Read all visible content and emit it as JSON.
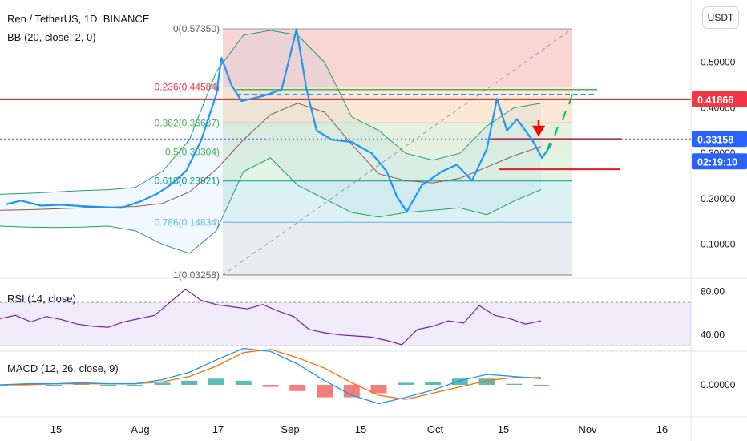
{
  "header": {
    "symbol_title": "Ren / TetherUS, 1D, BINANCE",
    "indicator_bb": "BB (20, close, 2, 0)",
    "currency": "USDT"
  },
  "chart_data": [
    {
      "type": "line",
      "panel": "price",
      "title": "Ren / TetherUS, 1D, BINANCE",
      "y_axis_labels": [
        "0.50000",
        "0.40000",
        "0.30000",
        "0.20000",
        "0.10000"
      ],
      "ylim": [
        0.03,
        0.58
      ],
      "price_series": [
        {
          "date": "2020-07-05",
          "close": 0.188
        },
        {
          "date": "2020-07-08",
          "close": 0.196
        },
        {
          "date": "2020-07-12",
          "close": 0.185
        },
        {
          "date": "2020-07-16",
          "close": 0.187
        },
        {
          "date": "2020-07-20",
          "close": 0.184
        },
        {
          "date": "2020-07-24",
          "close": 0.182
        },
        {
          "date": "2020-07-28",
          "close": 0.18
        },
        {
          "date": "2020-08-01",
          "close": 0.195
        },
        {
          "date": "2020-08-04",
          "close": 0.21
        },
        {
          "date": "2020-08-07",
          "close": 0.232
        },
        {
          "date": "2020-08-10",
          "close": 0.262
        },
        {
          "date": "2020-08-13",
          "close": 0.33
        },
        {
          "date": "2020-08-16",
          "close": 0.43
        },
        {
          "date": "2020-08-17",
          "close": 0.51
        },
        {
          "date": "2020-08-19",
          "close": 0.45
        },
        {
          "date": "2020-08-21",
          "close": 0.415
        },
        {
          "date": "2020-08-25",
          "close": 0.425
        },
        {
          "date": "2020-08-29",
          "close": 0.44
        },
        {
          "date": "2020-09-01",
          "close": 0.573
        },
        {
          "date": "2020-09-03",
          "close": 0.44
        },
        {
          "date": "2020-09-05",
          "close": 0.35
        },
        {
          "date": "2020-09-08",
          "close": 0.33
        },
        {
          "date": "2020-09-12",
          "close": 0.325
        },
        {
          "date": "2020-09-16",
          "close": 0.3
        },
        {
          "date": "2020-09-19",
          "close": 0.26
        },
        {
          "date": "2020-09-21",
          "close": 0.205
        },
        {
          "date": "2020-09-23",
          "close": 0.172
        },
        {
          "date": "2020-09-26",
          "close": 0.23
        },
        {
          "date": "2020-09-30",
          "close": 0.26
        },
        {
          "date": "2020-10-03",
          "close": 0.275
        },
        {
          "date": "2020-10-06",
          "close": 0.24
        },
        {
          "date": "2020-10-09",
          "close": 0.31
        },
        {
          "date": "2020-10-11",
          "close": 0.42
        },
        {
          "date": "2020-10-13",
          "close": 0.35
        },
        {
          "date": "2020-10-15",
          "close": 0.375
        },
        {
          "date": "2020-10-18",
          "close": 0.33
        },
        {
          "date": "2020-10-20",
          "close": 0.29
        },
        {
          "date": "2020-10-22",
          "close": 0.322
        }
      ],
      "bollinger": {
        "basis": [
          0.175,
          0.176,
          0.178,
          0.18,
          0.182,
          0.183,
          0.19,
          0.215,
          0.265,
          0.33,
          0.385,
          0.41,
          0.39,
          0.32,
          0.255,
          0.24,
          0.235,
          0.245,
          0.27,
          0.295,
          0.315
        ],
        "upper": [
          0.21,
          0.212,
          0.215,
          0.218,
          0.22,
          0.225,
          0.26,
          0.33,
          0.48,
          0.56,
          0.57,
          0.56,
          0.5,
          0.38,
          0.35,
          0.3,
          0.285,
          0.3,
          0.36,
          0.4,
          0.41
        ],
        "lower": [
          0.14,
          0.138,
          0.137,
          0.138,
          0.14,
          0.13,
          0.1,
          0.08,
          0.13,
          0.26,
          0.29,
          0.23,
          0.2,
          0.17,
          0.16,
          0.17,
          0.175,
          0.18,
          0.165,
          0.195,
          0.22
        ]
      },
      "fibonacci": [
        {
          "label": "0(0.57350)",
          "level": 0.5735,
          "fill": "#f8cfcb"
        },
        {
          "label": "0.236(0.44584)",
          "level": 0.44584,
          "fill": "#fbe4cc"
        },
        {
          "label": "0.382(0.36687)",
          "level": 0.36687,
          "fill": "#e0efd8"
        },
        {
          "label": "0.5(0.30304)",
          "level": 0.30304,
          "fill": "#dff2df"
        },
        {
          "label": "0.618(0.23921)",
          "level": 0.23921,
          "fill": "#d6eef0"
        },
        {
          "label": "0.786(0.14834)",
          "level": 0.14834,
          "fill": "#e7e9ec"
        },
        {
          "label": "1(0.03258)",
          "level": 0.03258,
          "fill": "#ffffff"
        }
      ],
      "horizontal_lines": [
        {
          "price": 0.41866,
          "color": "#e21b1b"
        },
        {
          "price": 0.3315,
          "color": "#e21b1b"
        },
        {
          "price": 0.265,
          "color": "#e21b1b"
        },
        {
          "price": 0.44,
          "color": "#4caf50"
        }
      ],
      "price_labels": [
        {
          "text": "0.41866",
          "value": 0.41866,
          "color": "#f23645"
        },
        {
          "text": "0.33158",
          "value": 0.33158,
          "color": "#2962ff"
        },
        {
          "text": "02:19:10",
          "value": 0.29,
          "color": "#2962ff"
        }
      ]
    },
    {
      "type": "line",
      "panel": "rsi",
      "title": "RSI (14, close)",
      "y_axis_labels": [
        "80.00",
        "40.00"
      ],
      "ylim": [
        25,
        90
      ],
      "band": [
        30,
        70
      ],
      "values": [
        55,
        58,
        52,
        57,
        54,
        50,
        48,
        47,
        52,
        55,
        58,
        70,
        82,
        72,
        68,
        66,
        64,
        68,
        62,
        57,
        45,
        42,
        40,
        39,
        38,
        35,
        31,
        45,
        48,
        53,
        51,
        67,
        58,
        55,
        50,
        53
      ]
    },
    {
      "type": "bar",
      "panel": "macd",
      "title": "MACD (12, 26, close, 9)",
      "y_axis_labels": [
        "0.00000"
      ],
      "ylim": [
        -0.035,
        0.045
      ],
      "macd": [
        0.0,
        0.001,
        0.001,
        0.002,
        0.001,
        0.001,
        0.005,
        0.012,
        0.024,
        0.035,
        0.032,
        0.02,
        0.004,
        -0.01,
        -0.018,
        -0.012,
        -0.005,
        0.004,
        0.01,
        0.008,
        0.006
      ],
      "signal": [
        0.0,
        0.0,
        0.001,
        0.001,
        0.001,
        0.001,
        0.003,
        0.008,
        0.018,
        0.031,
        0.034,
        0.026,
        0.016,
        0.002,
        -0.01,
        -0.014,
        -0.008,
        -0.002,
        0.004,
        0.007,
        0.007
      ],
      "histogram": [
        0.0,
        0.001,
        0.0,
        0.001,
        0.0,
        0.0,
        0.002,
        0.004,
        0.006,
        0.004,
        -0.002,
        -0.006,
        -0.012,
        -0.012,
        -0.008,
        0.002,
        0.003,
        0.006,
        0.006,
        0.001,
        -0.001
      ]
    }
  ],
  "x_axis": {
    "tick_labels": [
      "15",
      "Aug",
      "17",
      "Sep",
      "15",
      "Oct",
      "15",
      "Nov",
      "16"
    ]
  },
  "colors": {
    "price_line": "#2196f3",
    "bb_basis": "#8d5a4a",
    "bb_band": "#2a9d6f",
    "rsi": "#7b1fa2",
    "macd_line": "#2196f3",
    "signal_line": "#ff6d00",
    "hist_up": "#26a69a",
    "hist_down": "#ef5350",
    "annotation_green": "#00c853",
    "annotation_red": "#ff0000"
  }
}
